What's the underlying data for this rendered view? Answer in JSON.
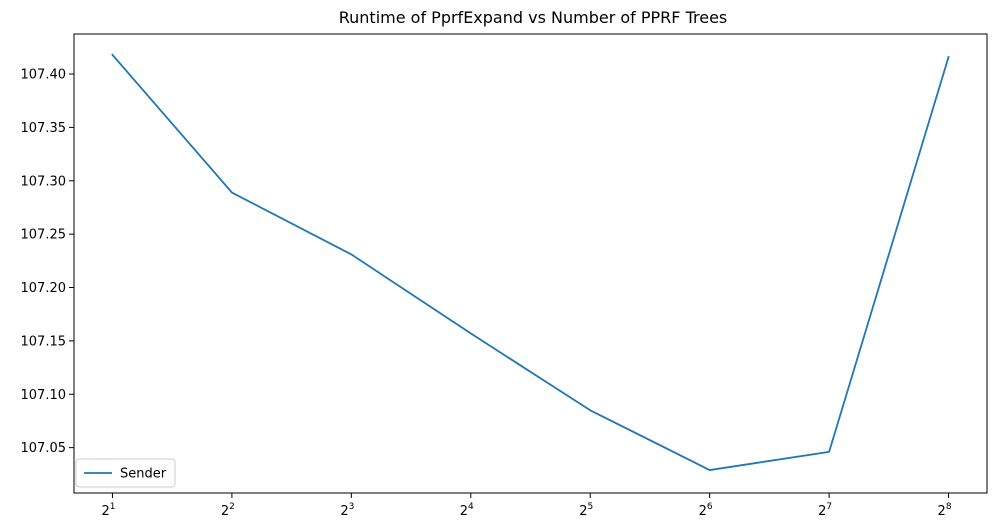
{
  "chart_data": {
    "type": "line",
    "title": "Runtime of PprfExpand vs Number of PPRF Trees",
    "xlabel": "",
    "ylabel": "",
    "x_scale": "log2",
    "x_ticks": [
      {
        "value": 2,
        "base": "2",
        "exp": "1"
      },
      {
        "value": 4,
        "base": "2",
        "exp": "2"
      },
      {
        "value": 8,
        "base": "2",
        "exp": "3"
      },
      {
        "value": 16,
        "base": "2",
        "exp": "4"
      },
      {
        "value": 32,
        "base": "2",
        "exp": "5"
      },
      {
        "value": 64,
        "base": "2",
        "exp": "6"
      },
      {
        "value": 128,
        "base": "2",
        "exp": "7"
      },
      {
        "value": 256,
        "base": "2",
        "exp": "8"
      }
    ],
    "y_ticks": [
      "107.05",
      "107.10",
      "107.15",
      "107.20",
      "107.25",
      "107.30",
      "107.35",
      "107.40"
    ],
    "ylim": [
      107.0075,
      107.4375
    ],
    "grid": false,
    "legend_position": "lower-left",
    "series": [
      {
        "name": "Sender",
        "color": "#1f77b4",
        "x": [
          2,
          4,
          8,
          16,
          32,
          64,
          128,
          256
        ],
        "y": [
          107.418,
          107.289,
          107.231,
          107.157,
          107.085,
          107.029,
          107.046,
          107.416
        ]
      }
    ]
  }
}
